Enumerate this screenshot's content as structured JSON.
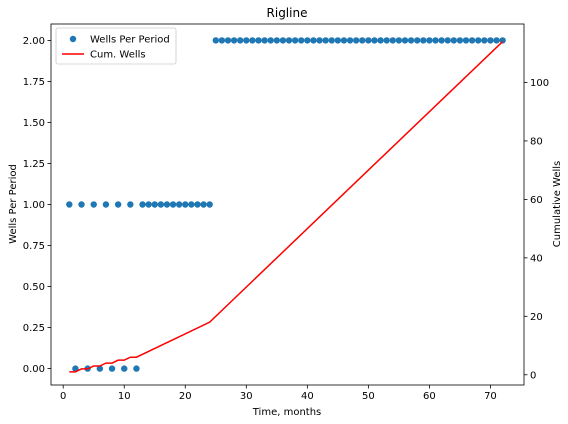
{
  "chart_data": {
    "type": "scatter+line",
    "title": "Rigline",
    "xlabel": "Time, months",
    "ylabel": "Wells Per Period",
    "y2label": "Cumulative Wells",
    "xlim": [
      -2,
      75.5
    ],
    "ylim": [
      -0.1,
      2.1
    ],
    "y2lim": [
      -3.5,
      120
    ],
    "xticks": [
      0,
      10,
      20,
      30,
      40,
      50,
      60,
      70
    ],
    "yticks": [
      0.0,
      0.25,
      0.5,
      0.75,
      1.0,
      1.25,
      1.5,
      1.75,
      2.0
    ],
    "ytick_labels": [
      "0.00",
      "0.25",
      "0.50",
      "0.75",
      "1.00",
      "1.25",
      "1.50",
      "1.75",
      "2.00"
    ],
    "y2ticks": [
      0,
      20,
      40,
      60,
      80,
      100
    ],
    "legend": "top-left",
    "grid": false,
    "series": [
      {
        "name": "Wells Per Period",
        "kind": "scatter",
        "axis": "left",
        "color": "#1f77b4",
        "x": [
          1,
          2,
          3,
          4,
          5,
          6,
          7,
          8,
          9,
          10,
          11,
          12,
          13,
          14,
          15,
          16,
          17,
          18,
          19,
          20,
          21,
          22,
          23,
          24,
          25,
          26,
          27,
          28,
          29,
          30,
          31,
          32,
          33,
          34,
          35,
          36,
          37,
          38,
          39,
          40,
          41,
          42,
          43,
          44,
          45,
          46,
          47,
          48,
          49,
          50,
          51,
          52,
          53,
          54,
          55,
          56,
          57,
          58,
          59,
          60,
          61,
          62,
          63,
          64,
          65,
          66,
          67,
          68,
          69,
          70,
          71,
          72
        ],
        "y": [
          1,
          0,
          1,
          0,
          1,
          0,
          1,
          0,
          1,
          0,
          1,
          0,
          1,
          1,
          1,
          1,
          1,
          1,
          1,
          1,
          1,
          1,
          1,
          1,
          2,
          2,
          2,
          2,
          2,
          2,
          2,
          2,
          2,
          2,
          2,
          2,
          2,
          2,
          2,
          2,
          2,
          2,
          2,
          2,
          2,
          2,
          2,
          2,
          2,
          2,
          2,
          2,
          2,
          2,
          2,
          2,
          2,
          2,
          2,
          2,
          2,
          2,
          2,
          2,
          2,
          2,
          2,
          2,
          2,
          2,
          2,
          2
        ]
      },
      {
        "name": "Cum. Wells",
        "kind": "line",
        "axis": "right",
        "color": "#ff0000",
        "x": [
          1,
          2,
          3,
          4,
          5,
          6,
          7,
          8,
          9,
          10,
          11,
          12,
          24,
          72
        ],
        "y": [
          1,
          1,
          2,
          2,
          3,
          3,
          4,
          4,
          5,
          5,
          6,
          6,
          18,
          114
        ]
      }
    ]
  }
}
